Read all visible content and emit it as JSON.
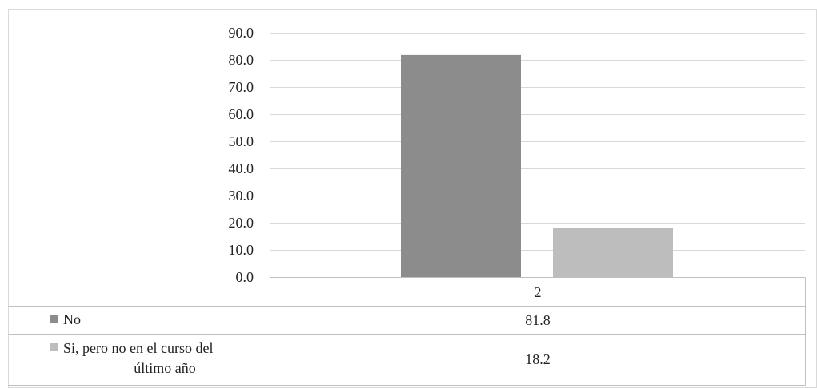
{
  "chart_data": {
    "type": "bar",
    "title": "",
    "xlabel": "",
    "ylabel": "",
    "categories": [
      "2"
    ],
    "ylim": [
      0,
      90
    ],
    "yticks": [
      "0.0",
      "10.0",
      "20.0",
      "30.0",
      "40.0",
      "50.0",
      "60.0",
      "70.0",
      "80.0",
      "90.0"
    ],
    "grid": true,
    "legend": "data-table-below",
    "series": [
      {
        "name": "No",
        "values": [
          81.8
        ],
        "labels": [
          "81.8"
        ],
        "color": "#8c8c8c"
      },
      {
        "name": "Si, pero no en el curso del último año",
        "name_lines": [
          "Si, pero no en el curso del",
          "último año"
        ],
        "values": [
          18.2
        ],
        "labels": [
          "18.2"
        ],
        "color": "#bdbdbd"
      }
    ]
  }
}
